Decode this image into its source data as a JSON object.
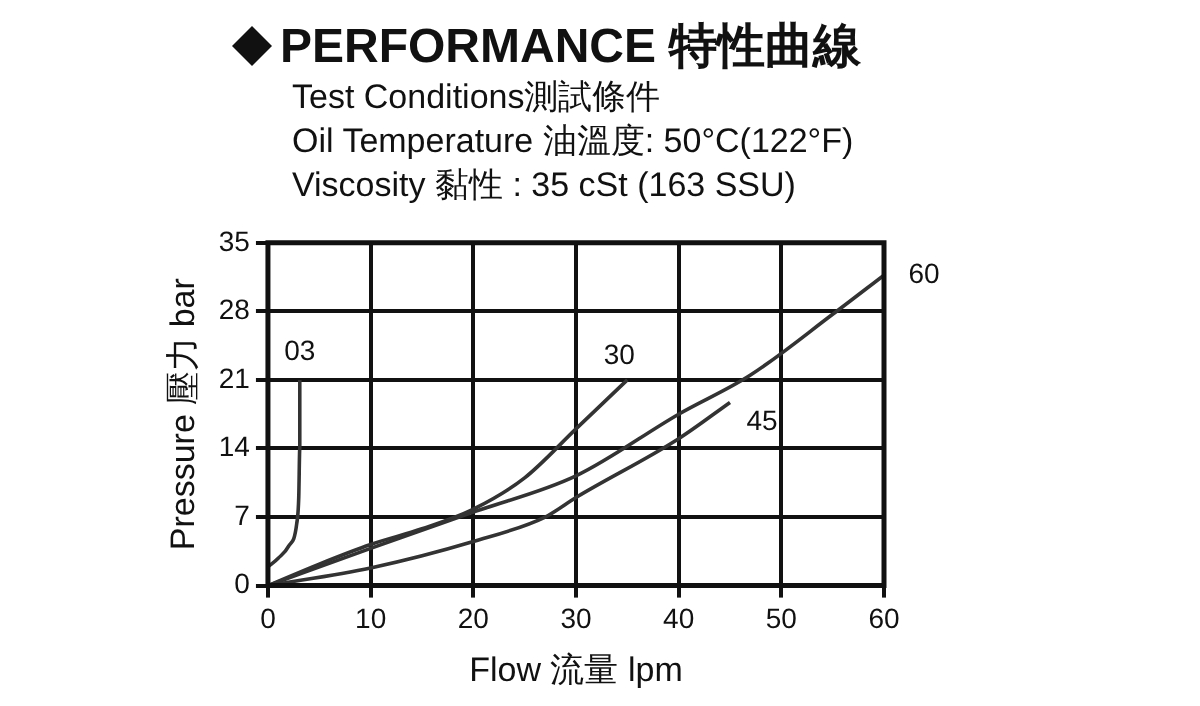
{
  "chart_data": {
    "type": "line",
    "title": "PERFORMANCE 特性曲線",
    "subtitle": "Test Conditions測試條件",
    "annotations": [
      "Oil Temperature 油溫度: 50°C(122°F)",
      "Viscosity 黏性 : 35 cSt (163 SSU)"
    ],
    "xlabel": "Flow 流量 lpm",
    "ylabel": "Pressure 壓力 bar",
    "xlim": [
      0,
      60
    ],
    "xticks": [
      0,
      10,
      20,
      30,
      40,
      50,
      60
    ],
    "ylim": [
      0,
      35
    ],
    "yticks": [
      0,
      7,
      14,
      21,
      28,
      35
    ],
    "grid": true,
    "marker": "none",
    "line_style": "solid",
    "series": [
      {
        "name": "03",
        "color": "#333333",
        "x": [
          0,
          1,
          2,
          2.8,
          3,
          3.1,
          3.1
        ],
        "values": [
          1.9,
          2.8,
          4,
          6.3,
          9,
          14,
          21
        ]
      },
      {
        "name": "30",
        "color": "#333333",
        "x": [
          0,
          5,
          10,
          15,
          20,
          25,
          30,
          35
        ],
        "values": [
          0,
          2.2,
          4.2,
          5.8,
          7.8,
          11,
          16,
          21
        ]
      },
      {
        "name": "45",
        "color": "#333333",
        "x": [
          0,
          10,
          20,
          27,
          30,
          40,
          45
        ],
        "values": [
          0,
          1.8,
          4.5,
          7,
          9,
          15,
          18.7
        ]
      },
      {
        "name": "60",
        "color": "#333333",
        "x": [
          0,
          10,
          20,
          30,
          40,
          47,
          55,
          60
        ],
        "values": [
          0,
          3.8,
          7.5,
          11.2,
          17.5,
          21.5,
          27.7,
          31.7
        ]
      }
    ]
  }
}
